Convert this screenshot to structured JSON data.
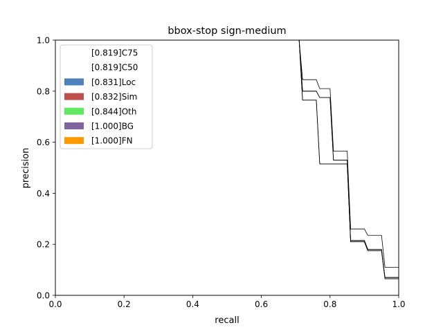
{
  "chart_data": {
    "type": "area",
    "title": "bbox-stop sign-medium",
    "xlabel": "recall",
    "ylabel": "precision",
    "xlim": [
      0,
      1
    ],
    "ylim": [
      0,
      1
    ],
    "xticks": [
      "0.0",
      "0.2",
      "0.4",
      "0.6",
      "0.8",
      "1.0"
    ],
    "yticks": [
      "0.0",
      "0.2",
      "0.4",
      "0.6",
      "0.8",
      "1.0"
    ],
    "grid": false,
    "legend_position": "top-left",
    "series": [
      {
        "name": "[0.819]C75",
        "color": "#ffffff",
        "points": [
          [
            0.71,
            1.0
          ],
          [
            0.72,
            0.765
          ],
          [
            0.76,
            0.765
          ],
          [
            0.77,
            0.515
          ],
          [
            0.85,
            0.515
          ],
          [
            0.86,
            0.21
          ],
          [
            0.9,
            0.21
          ],
          [
            0.91,
            0.175
          ],
          [
            0.95,
            0.175
          ],
          [
            0.96,
            0.065
          ],
          [
            1.0,
            0.065
          ]
        ]
      },
      {
        "name": "[0.819]C50",
        "color": "#ffffff",
        "points": [
          [
            0.71,
            1.0
          ],
          [
            0.72,
            0.765
          ],
          [
            0.76,
            0.765
          ],
          [
            0.77,
            0.515
          ],
          [
            0.85,
            0.515
          ],
          [
            0.86,
            0.21
          ],
          [
            0.9,
            0.21
          ],
          [
            0.91,
            0.175
          ],
          [
            0.95,
            0.175
          ],
          [
            0.96,
            0.065
          ],
          [
            1.0,
            0.065
          ]
        ]
      },
      {
        "name": "[0.831]Loc",
        "color": "#4f81bd",
        "points": [
          [
            0.71,
            1.0
          ],
          [
            0.72,
            0.8
          ],
          [
            0.76,
            0.8
          ],
          [
            0.77,
            0.775
          ],
          [
            0.8,
            0.775
          ],
          [
            0.81,
            0.53
          ],
          [
            0.85,
            0.53
          ],
          [
            0.86,
            0.215
          ],
          [
            0.9,
            0.215
          ],
          [
            0.91,
            0.18
          ],
          [
            0.95,
            0.18
          ],
          [
            0.96,
            0.07
          ],
          [
            1.0,
            0.07
          ]
        ]
      },
      {
        "name": "[0.832]Sim",
        "color": "#c0504d",
        "points": [
          [
            0.71,
            1.0
          ],
          [
            0.72,
            0.8
          ],
          [
            0.76,
            0.8
          ],
          [
            0.77,
            0.775
          ],
          [
            0.8,
            0.775
          ],
          [
            0.81,
            0.53
          ],
          [
            0.85,
            0.53
          ],
          [
            0.86,
            0.215
          ],
          [
            0.9,
            0.215
          ],
          [
            0.91,
            0.18
          ],
          [
            0.95,
            0.18
          ],
          [
            0.96,
            0.07
          ],
          [
            1.0,
            0.07
          ]
        ]
      },
      {
        "name": "[0.844]Oth",
        "color": "#62e962",
        "points": [
          [
            0.71,
            1.0
          ],
          [
            0.72,
            0.845
          ],
          [
            0.76,
            0.845
          ],
          [
            0.77,
            0.81
          ],
          [
            0.8,
            0.81
          ],
          [
            0.81,
            0.565
          ],
          [
            0.85,
            0.565
          ],
          [
            0.86,
            0.26
          ],
          [
            0.9,
            0.26
          ],
          [
            0.91,
            0.235
          ],
          [
            0.95,
            0.235
          ],
          [
            0.96,
            0.11
          ],
          [
            1.0,
            0.11
          ]
        ]
      },
      {
        "name": "[1.000]BG",
        "color": "#8064a2",
        "points": [
          [
            0.71,
            1.0
          ],
          [
            1.0,
            1.0
          ]
        ]
      },
      {
        "name": "[1.000]FN",
        "color": "#ff9900",
        "points": [
          [
            0.71,
            1.0
          ],
          [
            1.0,
            1.0
          ]
        ]
      }
    ]
  }
}
